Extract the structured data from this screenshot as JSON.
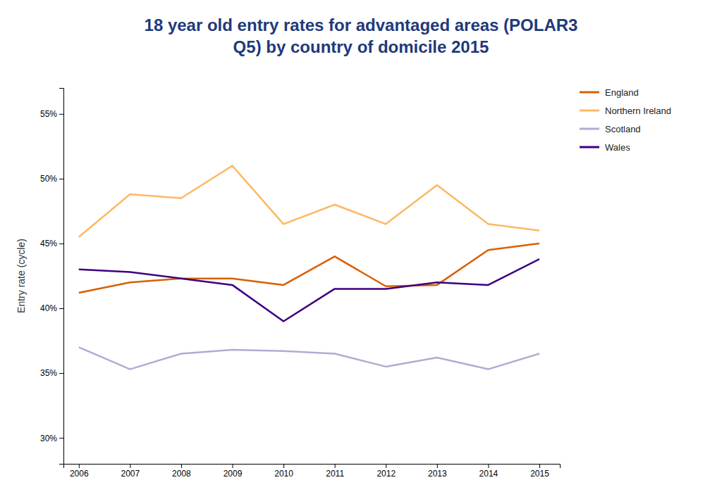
{
  "chart_data": {
    "type": "line",
    "title": "18 year old entry rates for advantaged areas (POLAR3 Q5) by country of domicile 2015",
    "y_label": "Entry rate (cycle)",
    "x": [
      2006,
      2007,
      2008,
      2009,
      2010,
      2011,
      2012,
      2013,
      2014,
      2015
    ],
    "series": [
      {
        "name": "England",
        "color": "#D95F02",
        "values": [
          41.2,
          42.0,
          42.3,
          42.3,
          41.8,
          44.0,
          41.7,
          41.8,
          44.5,
          45.0
        ]
      },
      {
        "name": "Northern Ireland",
        "color": "#FDB863",
        "values": [
          45.5,
          48.8,
          48.5,
          51.0,
          46.5,
          48.0,
          46.5,
          49.5,
          46.5,
          46.0
        ]
      },
      {
        "name": "Scotland",
        "color": "#B2ABD2",
        "values": [
          37.0,
          35.3,
          36.5,
          36.8,
          36.7,
          36.5,
          35.5,
          36.2,
          35.3,
          36.5
        ]
      },
      {
        "name": "Wales",
        "color": "#3D0080",
        "values": [
          43.0,
          42.8,
          42.3,
          41.8,
          39.0,
          41.5,
          41.5,
          42.0,
          41.8,
          43.8
        ]
      }
    ],
    "xlim": [
      2005.7,
      2015.4
    ],
    "xticks": [
      2006,
      2007,
      2008,
      2009,
      2010,
      2011,
      2012,
      2013,
      2014,
      2015
    ],
    "ylim": [
      28,
      57
    ],
    "yticks": [
      {
        "value": 30,
        "label": "30%"
      },
      {
        "value": 35,
        "label": "35%"
      },
      {
        "value": 40,
        "label": "40%"
      },
      {
        "value": 45,
        "label": "45%"
      },
      {
        "value": 50,
        "label": "50%"
      },
      {
        "value": 55,
        "label": "55%"
      }
    ],
    "grid": false,
    "legend": "right"
  }
}
